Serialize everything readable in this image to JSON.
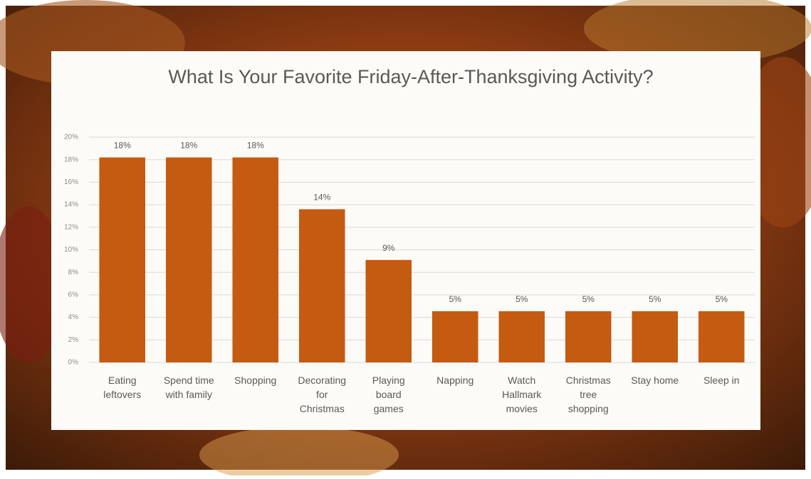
{
  "chart_data": {
    "type": "bar",
    "title": "What Is Your Favorite Friday-After-Thanksgiving Activity?",
    "categories": [
      "Eating leftovers",
      "Spend time with family",
      "Shopping",
      "Decorating for Christmas",
      "Playing board games",
      "Napping",
      "Watch Hallmark movies",
      "Christmas tree shopping",
      "Stay home",
      "Sleep in"
    ],
    "values": [
      18.2,
      18.2,
      18.2,
      13.6,
      9.1,
      4.55,
      4.55,
      4.55,
      4.55,
      4.55
    ],
    "value_labels": [
      "18%",
      "18%",
      "18%",
      "14%",
      "9%",
      "5%",
      "5%",
      "5%",
      "5%",
      "5%"
    ],
    "color": "#c55a11",
    "ylim": [
      0,
      20
    ],
    "yticks": [
      {
        "value": 0,
        "label": "0%"
      },
      {
        "value": 2,
        "label": "2%"
      },
      {
        "value": 4,
        "label": "4%"
      },
      {
        "value": 6,
        "label": "6%"
      },
      {
        "value": 8,
        "label": "8%"
      },
      {
        "value": 10,
        "label": "10%"
      },
      {
        "value": 12,
        "label": "12%"
      },
      {
        "value": 14,
        "label": "14%"
      },
      {
        "value": 16,
        "label": "16%"
      },
      {
        "value": 18,
        "label": "18%"
      },
      {
        "value": 20,
        "label": "20%"
      }
    ],
    "grid": true
  }
}
